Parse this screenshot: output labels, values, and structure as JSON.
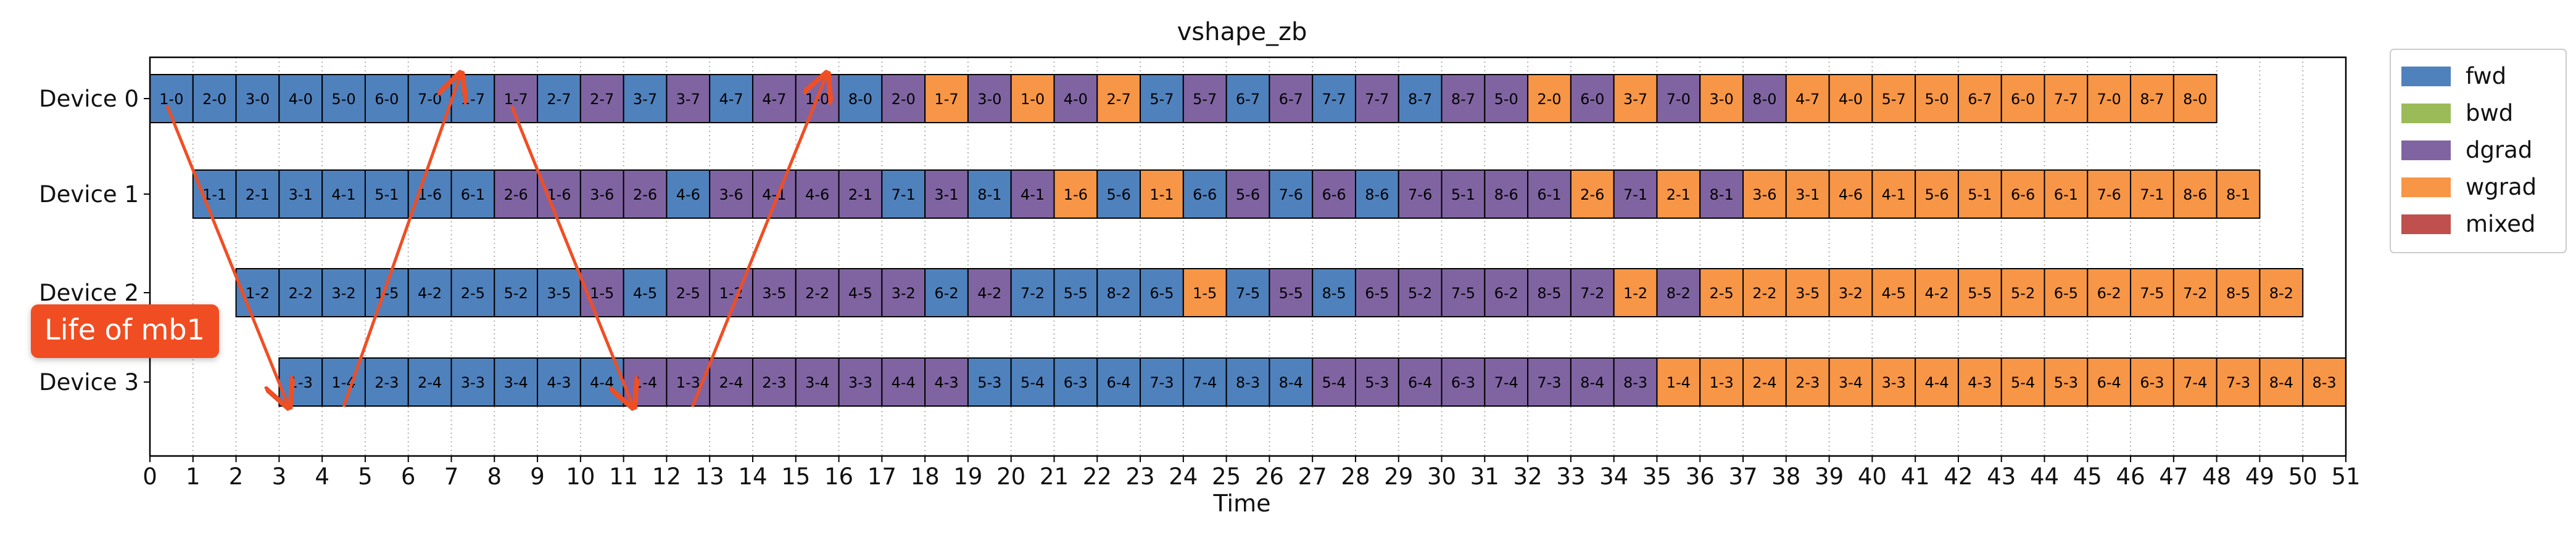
{
  "chart_data": {
    "type": "gantt",
    "title": "vshape_zb",
    "xlabel": "Time",
    "xlim": [
      0,
      51
    ],
    "xticks": [
      0,
      1,
      2,
      3,
      4,
      5,
      6,
      7,
      8,
      9,
      10,
      11,
      12,
      13,
      14,
      15,
      16,
      17,
      18,
      19,
      20,
      21,
      22,
      23,
      24,
      25,
      26,
      27,
      28,
      29,
      30,
      31,
      32,
      33,
      34,
      35,
      36,
      37,
      38,
      39,
      40,
      41,
      42,
      43,
      44,
      45,
      46,
      47,
      48,
      49,
      50,
      51
    ],
    "devices": [
      "Device 0",
      "Device 1",
      "Device 2",
      "Device 3"
    ],
    "grid": "x-dotted",
    "legend_position": "outside-top-right",
    "legend": [
      {
        "key": "fwd",
        "label": "fwd",
        "color": "#4f81bd"
      },
      {
        "key": "bwd",
        "label": "bwd",
        "color": "#9bbb59"
      },
      {
        "key": "dgrad",
        "label": "dgrad",
        "color": "#8064a2"
      },
      {
        "key": "wgrad",
        "label": "wgrad",
        "color": "#f79646"
      },
      {
        "key": "mixed",
        "label": "mixed",
        "color": "#c0504d"
      }
    ],
    "device_tasks": [
      {
        "device": "Device 0",
        "start": 0,
        "labels": [
          "1-0",
          "2-0",
          "3-0",
          "4-0",
          "5-0",
          "6-0",
          "7-0",
          "1-7",
          "1-7",
          "2-7",
          "2-7",
          "3-7",
          "3-7",
          "4-7",
          "4-7",
          "1-0",
          "8-0",
          "2-0",
          "1-7",
          "3-0",
          "1-0",
          "4-0",
          "2-7",
          "5-7",
          "5-7",
          "6-7",
          "6-7",
          "7-7",
          "7-7",
          "8-7",
          "8-7",
          "5-0",
          "2-0",
          "6-0",
          "3-7",
          "7-0",
          "3-0",
          "8-0",
          "4-7",
          "4-0",
          "5-7",
          "5-0",
          "6-7",
          "6-0",
          "7-7",
          "7-0",
          "8-7",
          "8-0"
        ],
        "types": [
          "fwd",
          "fwd",
          "fwd",
          "fwd",
          "fwd",
          "fwd",
          "fwd",
          "fwd",
          "dgrad",
          "fwd",
          "dgrad",
          "fwd",
          "dgrad",
          "fwd",
          "dgrad",
          "dgrad",
          "fwd",
          "dgrad",
          "wgrad",
          "dgrad",
          "wgrad",
          "dgrad",
          "wgrad",
          "fwd",
          "dgrad",
          "fwd",
          "dgrad",
          "fwd",
          "dgrad",
          "fwd",
          "dgrad",
          "dgrad",
          "wgrad",
          "dgrad",
          "wgrad",
          "dgrad",
          "wgrad",
          "dgrad",
          "wgrad",
          "wgrad",
          "wgrad",
          "wgrad",
          "wgrad",
          "wgrad",
          "wgrad",
          "wgrad",
          "wgrad",
          "wgrad"
        ]
      },
      {
        "device": "Device 1",
        "start": 1,
        "labels": [
          "1-1",
          "2-1",
          "3-1",
          "4-1",
          "5-1",
          "1-6",
          "6-1",
          "2-6",
          "1-6",
          "3-6",
          "2-6",
          "4-6",
          "3-6",
          "4-1",
          "4-6",
          "2-1",
          "7-1",
          "3-1",
          "8-1",
          "4-1",
          "1-6",
          "5-6",
          "1-1",
          "6-6",
          "5-6",
          "7-6",
          "6-6",
          "8-6",
          "7-6",
          "5-1",
          "8-6",
          "6-1",
          "2-6",
          "7-1",
          "2-1",
          "8-1",
          "3-6",
          "3-1",
          "4-6",
          "4-1",
          "5-6",
          "5-1",
          "6-6",
          "6-1",
          "7-6",
          "7-1",
          "8-6",
          "8-1"
        ],
        "types": [
          "fwd",
          "fwd",
          "fwd",
          "fwd",
          "fwd",
          "fwd",
          "fwd",
          "dgrad",
          "dgrad",
          "dgrad",
          "dgrad",
          "fwd",
          "dgrad",
          "dgrad",
          "dgrad",
          "dgrad",
          "fwd",
          "dgrad",
          "fwd",
          "dgrad",
          "wgrad",
          "fwd",
          "wgrad",
          "fwd",
          "dgrad",
          "fwd",
          "dgrad",
          "fwd",
          "dgrad",
          "dgrad",
          "dgrad",
          "dgrad",
          "wgrad",
          "dgrad",
          "wgrad",
          "dgrad",
          "wgrad",
          "wgrad",
          "wgrad",
          "wgrad",
          "wgrad",
          "wgrad",
          "wgrad",
          "wgrad",
          "wgrad",
          "wgrad",
          "wgrad",
          "wgrad"
        ]
      },
      {
        "device": "Device 2",
        "start": 2,
        "labels": [
          "1-2",
          "2-2",
          "3-2",
          "1-5",
          "4-2",
          "2-5",
          "5-2",
          "3-5",
          "1-5",
          "4-5",
          "2-5",
          "1-2",
          "3-5",
          "2-2",
          "4-5",
          "3-2",
          "6-2",
          "4-2",
          "7-2",
          "5-5",
          "8-2",
          "6-5",
          "1-5",
          "7-5",
          "5-5",
          "8-5",
          "6-5",
          "5-2",
          "7-5",
          "6-2",
          "8-5",
          "7-2",
          "1-2",
          "8-2",
          "2-5",
          "2-2",
          "3-5",
          "3-2",
          "4-5",
          "4-2",
          "5-5",
          "5-2",
          "6-5",
          "6-2",
          "7-5",
          "7-2",
          "8-5",
          "8-2"
        ],
        "types": [
          "fwd",
          "fwd",
          "fwd",
          "fwd",
          "fwd",
          "fwd",
          "fwd",
          "fwd",
          "dgrad",
          "fwd",
          "dgrad",
          "dgrad",
          "dgrad",
          "dgrad",
          "dgrad",
          "dgrad",
          "fwd",
          "dgrad",
          "fwd",
          "fwd",
          "fwd",
          "fwd",
          "wgrad",
          "fwd",
          "dgrad",
          "fwd",
          "dgrad",
          "dgrad",
          "dgrad",
          "dgrad",
          "dgrad",
          "dgrad",
          "wgrad",
          "dgrad",
          "wgrad",
          "wgrad",
          "wgrad",
          "wgrad",
          "wgrad",
          "wgrad",
          "wgrad",
          "wgrad",
          "wgrad",
          "wgrad",
          "wgrad",
          "wgrad",
          "wgrad",
          "wgrad"
        ]
      },
      {
        "device": "Device 3",
        "start": 3,
        "labels": [
          "1-3",
          "1-4",
          "2-3",
          "2-4",
          "3-3",
          "3-4",
          "4-3",
          "4-4",
          "1-4",
          "1-3",
          "2-4",
          "2-3",
          "3-4",
          "3-3",
          "4-4",
          "4-3",
          "5-3",
          "5-4",
          "6-3",
          "6-4",
          "7-3",
          "7-4",
          "8-3",
          "8-4",
          "5-4",
          "5-3",
          "6-4",
          "6-3",
          "7-4",
          "7-3",
          "8-4",
          "8-3",
          "1-4",
          "1-3",
          "2-4",
          "2-3",
          "3-4",
          "3-3",
          "4-4",
          "4-3",
          "5-4",
          "5-3",
          "6-4",
          "6-3",
          "7-4",
          "7-3",
          "8-4",
          "8-3"
        ],
        "types": [
          "fwd",
          "fwd",
          "fwd",
          "fwd",
          "fwd",
          "fwd",
          "fwd",
          "fwd",
          "dgrad",
          "dgrad",
          "dgrad",
          "dgrad",
          "dgrad",
          "dgrad",
          "dgrad",
          "dgrad",
          "fwd",
          "fwd",
          "fwd",
          "fwd",
          "fwd",
          "fwd",
          "fwd",
          "fwd",
          "dgrad",
          "dgrad",
          "dgrad",
          "dgrad",
          "dgrad",
          "dgrad",
          "dgrad",
          "dgrad",
          "wgrad",
          "wgrad",
          "wgrad",
          "wgrad",
          "wgrad",
          "wgrad",
          "wgrad",
          "wgrad",
          "wgrad",
          "wgrad",
          "wgrad",
          "wgrad",
          "wgrad",
          "wgrad",
          "wgrad",
          "wgrad"
        ]
      }
    ],
    "annotation": {
      "text": "Life of mb1",
      "color": "#f04e23",
      "path_points": [
        [
          0.4,
          0
        ],
        [
          3.2,
          3
        ],
        [
          4.5,
          3
        ],
        [
          7.2,
          0
        ],
        [
          8.4,
          0
        ],
        [
          11.2,
          3
        ],
        [
          12.6,
          3
        ],
        [
          15.7,
          0
        ]
      ]
    }
  }
}
